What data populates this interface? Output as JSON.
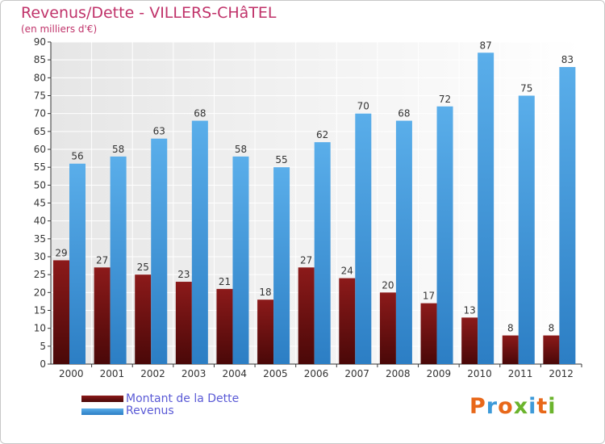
{
  "title": "Revenus/Dette - VILLERS-CHâTEL",
  "subtitle": "(en milliers d'€)",
  "logo": {
    "letters": [
      "P",
      "r",
      "o",
      "x",
      "i",
      "t",
      "i"
    ],
    "colors": [
      "#e8681a",
      "#3d9ad9",
      "#e8681a",
      "#6bb42d",
      "#3d9ad9",
      "#e8681a",
      "#6bb42d"
    ]
  },
  "chart_data": {
    "type": "bar",
    "title": "Revenus/Dette - VILLERS-CHâTEL",
    "subtitle": "(en milliers d'€)",
    "xlabel": "",
    "ylabel": "",
    "ylim": [
      0,
      90
    ],
    "yticks": [
      0,
      5,
      10,
      15,
      20,
      25,
      30,
      35,
      40,
      45,
      50,
      55,
      60,
      65,
      70,
      75,
      80,
      85,
      90
    ],
    "grid": true,
    "legend_position": "bottom-left",
    "categories": [
      "2000",
      "2001",
      "2002",
      "2003",
      "2004",
      "2005",
      "2006",
      "2007",
      "2008",
      "2009",
      "2010",
      "2011",
      "2012"
    ],
    "series": [
      {
        "name": "Montant de la Dette",
        "color": "#8c1a1a",
        "values": [
          29,
          27,
          25,
          23,
          21,
          18,
          27,
          24,
          20,
          17,
          13,
          8,
          8
        ]
      },
      {
        "name": "Revenus",
        "color": "#4aa3e4",
        "values": [
          56,
          58,
          63,
          68,
          58,
          55,
          62,
          70,
          68,
          72,
          87,
          75,
          83
        ]
      }
    ]
  }
}
